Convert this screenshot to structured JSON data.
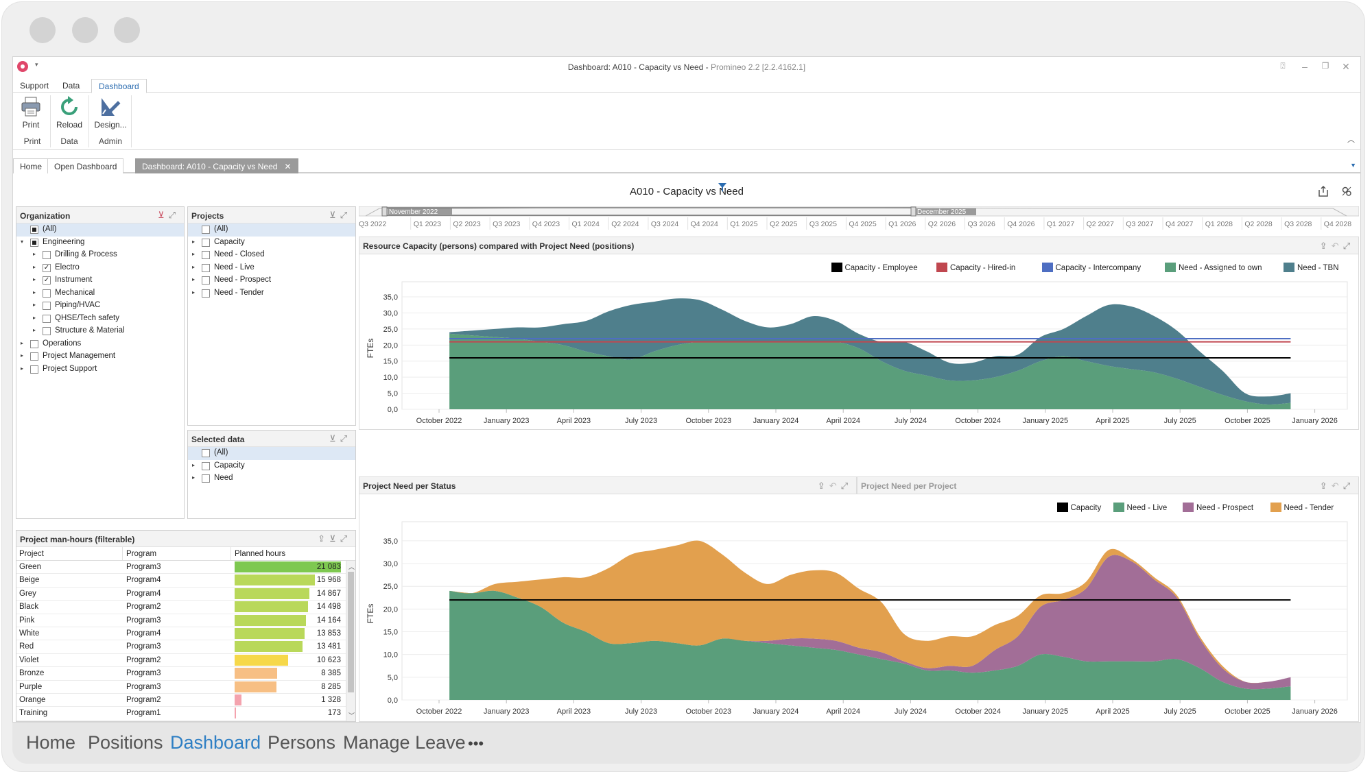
{
  "window": {
    "title": "Dashboard: A010 - Capacity vs Need - ",
    "version": "Promineo 2.2 [2.2.4162.1]",
    "qat": "▾"
  },
  "ribbon": {
    "tabs": [
      "Support",
      "Data",
      "Dashboard"
    ],
    "buttons": {
      "print": "Print",
      "reload": "Reload",
      "design": "Design..."
    },
    "groups": {
      "print": "Print",
      "data": "Data",
      "admin": "Admin"
    }
  },
  "doc_tabs": [
    "Home",
    "Open Dashboard",
    "Dashboard: A010 - Capacity vs Need"
  ],
  "dashboard_title": "A010 - Capacity vs Need",
  "organization": {
    "title": "Organization",
    "items": [
      {
        "label": "(All)",
        "level": 0,
        "state": "partial",
        "expander": "",
        "selected": true
      },
      {
        "label": "Engineering",
        "level": 0,
        "state": "partial",
        "expander": "▾"
      },
      {
        "label": "Drilling & Process",
        "level": 1,
        "state": "off",
        "expander": "▸"
      },
      {
        "label": "Electro",
        "level": 1,
        "state": "on",
        "expander": "▸"
      },
      {
        "label": "Instrument",
        "level": 1,
        "state": "on",
        "expander": "▸"
      },
      {
        "label": "Mechanical",
        "level": 1,
        "state": "off",
        "expander": "▸"
      },
      {
        "label": "Piping/HVAC",
        "level": 1,
        "state": "off",
        "expander": "▸"
      },
      {
        "label": "QHSE/Tech safety",
        "level": 1,
        "state": "off",
        "expander": "▸"
      },
      {
        "label": "Structure & Material",
        "level": 1,
        "state": "off",
        "expander": "▸"
      },
      {
        "label": "Operations",
        "level": 0,
        "state": "off",
        "expander": "▸"
      },
      {
        "label": "Project Management",
        "level": 0,
        "state": "off",
        "expander": "▸"
      },
      {
        "label": "Project Support",
        "level": 0,
        "state": "off",
        "expander": "▸"
      }
    ]
  },
  "projects": {
    "title": "Projects",
    "items": [
      {
        "label": "(All)",
        "expander": "",
        "selected": true
      },
      {
        "label": "Capacity",
        "expander": "▸"
      },
      {
        "label": "Need - Closed",
        "expander": "▸"
      },
      {
        "label": "Need - Live",
        "expander": "▸"
      },
      {
        "label": "Need - Prospect",
        "expander": "▸"
      },
      {
        "label": "Need - Tender",
        "expander": "▸"
      }
    ]
  },
  "selected_data": {
    "title": "Selected data",
    "items": [
      {
        "label": "(All)",
        "expander": "",
        "selected": true
      },
      {
        "label": "Capacity",
        "expander": "▸"
      },
      {
        "label": "Need",
        "expander": "▸"
      }
    ]
  },
  "manhours": {
    "title": "Project man-hours (filterable)",
    "columns": [
      "Project",
      "Program",
      "Planned hours"
    ],
    "rows": [
      {
        "project": "Green",
        "program": "Program3",
        "hours": 21083,
        "display": "21 083",
        "color": "#7ec850"
      },
      {
        "project": "Beige",
        "program": "Program4",
        "hours": 15968,
        "display": "15 968",
        "color": "#b9d85a"
      },
      {
        "project": "Grey",
        "program": "Program4",
        "hours": 14867,
        "display": "14 867",
        "color": "#b9d85a"
      },
      {
        "project": "Black",
        "program": "Program2",
        "hours": 14498,
        "display": "14 498",
        "color": "#b9d85a"
      },
      {
        "project": "Pink",
        "program": "Program3",
        "hours": 14164,
        "display": "14 164",
        "color": "#b9d85a"
      },
      {
        "project": "White",
        "program": "Program4",
        "hours": 13853,
        "display": "13 853",
        "color": "#b9d85a"
      },
      {
        "project": "Red",
        "program": "Program3",
        "hours": 13481,
        "display": "13 481",
        "color": "#b9d85a"
      },
      {
        "project": "Violet",
        "program": "Program2",
        "hours": 10623,
        "display": "10 623",
        "color": "#f6d84a"
      },
      {
        "project": "Bronze",
        "program": "Program3",
        "hours": 8385,
        "display": "8 385",
        "color": "#f7bf84"
      },
      {
        "project": "Purple",
        "program": "Program3",
        "hours": 8285,
        "display": "8 285",
        "color": "#f7bf84"
      },
      {
        "project": "Orange",
        "program": "Program2",
        "hours": 1328,
        "display": "1 328",
        "color": "#f4a3ae"
      },
      {
        "project": "Training",
        "program": "Program1",
        "hours": 173,
        "display": "173",
        "color": "#f4a3ae"
      }
    ],
    "max": 21083
  },
  "timeline": {
    "labels": [
      "Q3 2022",
      "Q1 2023",
      "Q2 2023",
      "Q3 2023",
      "Q4 2023",
      "Q1 2024",
      "Q2 2024",
      "Q3 2024",
      "Q4 2024",
      "Q1 2025",
      "Q2 2025",
      "Q3 2025",
      "Q4 2025",
      "Q1 2026",
      "Q2 2026",
      "Q3 2026",
      "Q4 2026",
      "Q1 2027",
      "Q2 2027",
      "Q3 2027",
      "Q4 2027",
      "Q1 2028",
      "Q2 2028",
      "Q3 2028",
      "Q4 2028"
    ],
    "range_start": "November 2022",
    "range_end": "December 2025"
  },
  "chart_data": [
    {
      "type": "area",
      "title": "Resource Capacity (persons)  compared with  Project Need (positions)",
      "ylabel": "FTEs",
      "ylim": [
        0,
        38
      ],
      "yticks": [
        "0,0",
        "5,0",
        "10,0",
        "15,0",
        "20,0",
        "25,0",
        "30,0",
        "35,0"
      ],
      "xticks": [
        "October 2022",
        "January 2023",
        "April 2023",
        "July 2023",
        "October 2023",
        "January 2024",
        "April 2024",
        "July 2024",
        "October 2024",
        "January 2025",
        "April 2025",
        "July 2025",
        "October 2025",
        "January 2026"
      ],
      "x": [
        "Nov 2022",
        "Dec 2022",
        "Jan 2023",
        "Feb 2023",
        "Mar 2023",
        "Apr 2023",
        "May 2023",
        "Jun 2023",
        "Jul 2023",
        "Aug 2023",
        "Sep 2023",
        "Oct 2023",
        "Nov 2023",
        "Dec 2023",
        "Jan 2024",
        "Feb 2024",
        "Mar 2024",
        "Apr 2024",
        "May 2024",
        "Jun 2024",
        "Jul 2024",
        "Aug 2024",
        "Sep 2024",
        "Oct 2024",
        "Nov 2024",
        "Dec 2024",
        "Jan 2025",
        "Feb 2025",
        "Mar 2025",
        "Apr 2025",
        "May 2025",
        "Jun 2025",
        "Jul 2025",
        "Aug 2025",
        "Sep 2025",
        "Oct 2025",
        "Nov 2025",
        "Dec 2025"
      ],
      "legend": [
        {
          "name": "Capacity - Employee",
          "color": "#000000"
        },
        {
          "name": "Capacity - Hired-in",
          "color": "#c0474f"
        },
        {
          "name": "Capacity - Intercompany",
          "color": "#4e6ec2"
        },
        {
          "name": "Need - Assigned to own",
          "color": "#5a9e7b"
        },
        {
          "name": "Need - TBN",
          "color": "#4f7f8c"
        }
      ],
      "lines": [
        {
          "name": "Capacity - Employee",
          "color": "#000000",
          "value": 16.0
        },
        {
          "name": "Capacity - Hired-in",
          "color": "#c0474f",
          "value": 21.0
        },
        {
          "name": "Capacity - Intercompany",
          "color": "#4e6ec2",
          "value": 22.0
        }
      ],
      "series": [
        {
          "name": "Need - Assigned to own",
          "color": "#5a9e7b",
          "values": [
            23.5,
            23.0,
            22.5,
            22.0,
            21.0,
            20.0,
            18.0,
            16.5,
            15.5,
            18.0,
            20.0,
            21.0,
            21.0,
            21.0,
            21.0,
            21.0,
            21.0,
            21.0,
            19.0,
            15.0,
            12.0,
            10.5,
            9.0,
            9.0,
            10.0,
            12.0,
            15.0,
            16.5,
            15.0,
            13.5,
            12.5,
            11.5,
            9.5,
            7.0,
            4.5,
            2.5,
            1.5,
            2.0
          ]
        },
        {
          "name": "Need - TBN",
          "color": "#4f7f8c",
          "values": [
            0.5,
            1.5,
            2.5,
            3.5,
            4.5,
            6.5,
            9.5,
            14.0,
            17.0,
            15.5,
            14.5,
            13.0,
            10.0,
            6.5,
            4.5,
            5.5,
            8.0,
            6.5,
            4.5,
            6.0,
            9.0,
            7.5,
            5.5,
            5.5,
            6.5,
            5.0,
            7.5,
            8.5,
            14.0,
            19.0,
            19.5,
            17.5,
            15.0,
            11.0,
            7.5,
            2.5,
            2.5,
            3.0
          ]
        }
      ]
    },
    {
      "type": "area",
      "title": "Project Need per Status",
      "ylabel": "FTEs",
      "ylim": [
        0,
        38
      ],
      "yticks": [
        "0,0",
        "5,0",
        "10,0",
        "15,0",
        "20,0",
        "25,0",
        "30,0",
        "35,0"
      ],
      "xticks": [
        "October 2022",
        "January 2023",
        "April 2023",
        "July 2023",
        "October 2023",
        "January 2024",
        "April 2024",
        "July 2024",
        "October 2024",
        "January 2025",
        "April 2025",
        "July 2025",
        "October 2025",
        "January 2026"
      ],
      "x": [
        "Nov 2022",
        "Dec 2022",
        "Jan 2023",
        "Feb 2023",
        "Mar 2023",
        "Apr 2023",
        "May 2023",
        "Jun 2023",
        "Jul 2023",
        "Aug 2023",
        "Sep 2023",
        "Oct 2023",
        "Nov 2023",
        "Dec 2023",
        "Jan 2024",
        "Feb 2024",
        "Mar 2024",
        "Apr 2024",
        "May 2024",
        "Jun 2024",
        "Jul 2024",
        "Aug 2024",
        "Sep 2024",
        "Oct 2024",
        "Nov 2024",
        "Dec 2024",
        "Jan 2025",
        "Feb 2025",
        "Mar 2025",
        "Apr 2025",
        "May 2025",
        "Jun 2025",
        "Jul 2025",
        "Aug 2025",
        "Sep 2025",
        "Oct 2025",
        "Nov 2025",
        "Dec 2025"
      ],
      "legend": [
        {
          "name": "Capacity",
          "color": "#000000"
        },
        {
          "name": "Need - Live",
          "color": "#5a9e7b"
        },
        {
          "name": "Need - Prospect",
          "color": "#a26e97"
        },
        {
          "name": "Need - Tender",
          "color": "#e2a04e"
        }
      ],
      "lines": [
        {
          "name": "Capacity",
          "color": "#000000",
          "value": 22.0
        }
      ],
      "series": [
        {
          "name": "Need - Live",
          "color": "#5a9e7b",
          "values": [
            24.0,
            23.5,
            24.0,
            22.5,
            20.5,
            17.0,
            15.0,
            12.5,
            12.5,
            13.0,
            12.5,
            12.0,
            13.5,
            13.0,
            12.5,
            12.0,
            11.5,
            11.0,
            10.0,
            9.0,
            8.0,
            6.5,
            6.5,
            6.0,
            6.5,
            7.5,
            10.0,
            9.5,
            8.5,
            8.5,
            8.5,
            8.5,
            9.0,
            7.0,
            4.0,
            2.5,
            2.5,
            3.0
          ]
        },
        {
          "name": "Need - Prospect",
          "color": "#a26e97",
          "values": [
            0,
            0,
            0,
            0,
            0,
            0,
            0,
            0,
            0,
            0,
            0,
            0,
            0,
            0,
            0.5,
            1.5,
            2.0,
            2.0,
            1.5,
            1.5,
            0.5,
            0.5,
            1.0,
            1.5,
            4.5,
            6.5,
            10.5,
            12.5,
            16.0,
            23.0,
            22.0,
            18.0,
            13.5,
            6.5,
            3.0,
            1.5,
            1.5,
            2.0
          ]
        },
        {
          "name": "Need - Tender",
          "color": "#e2a04e",
          "values": [
            0,
            0,
            1.5,
            3.5,
            6.0,
            10.0,
            12.0,
            16.5,
            19.5,
            20.0,
            21.5,
            23.0,
            18.5,
            15.0,
            12.5,
            14.0,
            15.0,
            15.0,
            13.0,
            11.0,
            6.0,
            6.0,
            6.5,
            6.5,
            5.5,
            4.5,
            2.5,
            1.5,
            1.5,
            1.5,
            0.5,
            0.5,
            0.5,
            0.5,
            0.5,
            0,
            0,
            0
          ]
        }
      ]
    }
  ],
  "secondary_panel_title": "Project Need per Project",
  "bottom_nav": {
    "items": [
      "Home",
      "Positions",
      "Dashboard",
      "Persons",
      "Manage Leave"
    ],
    "more": "•••"
  }
}
